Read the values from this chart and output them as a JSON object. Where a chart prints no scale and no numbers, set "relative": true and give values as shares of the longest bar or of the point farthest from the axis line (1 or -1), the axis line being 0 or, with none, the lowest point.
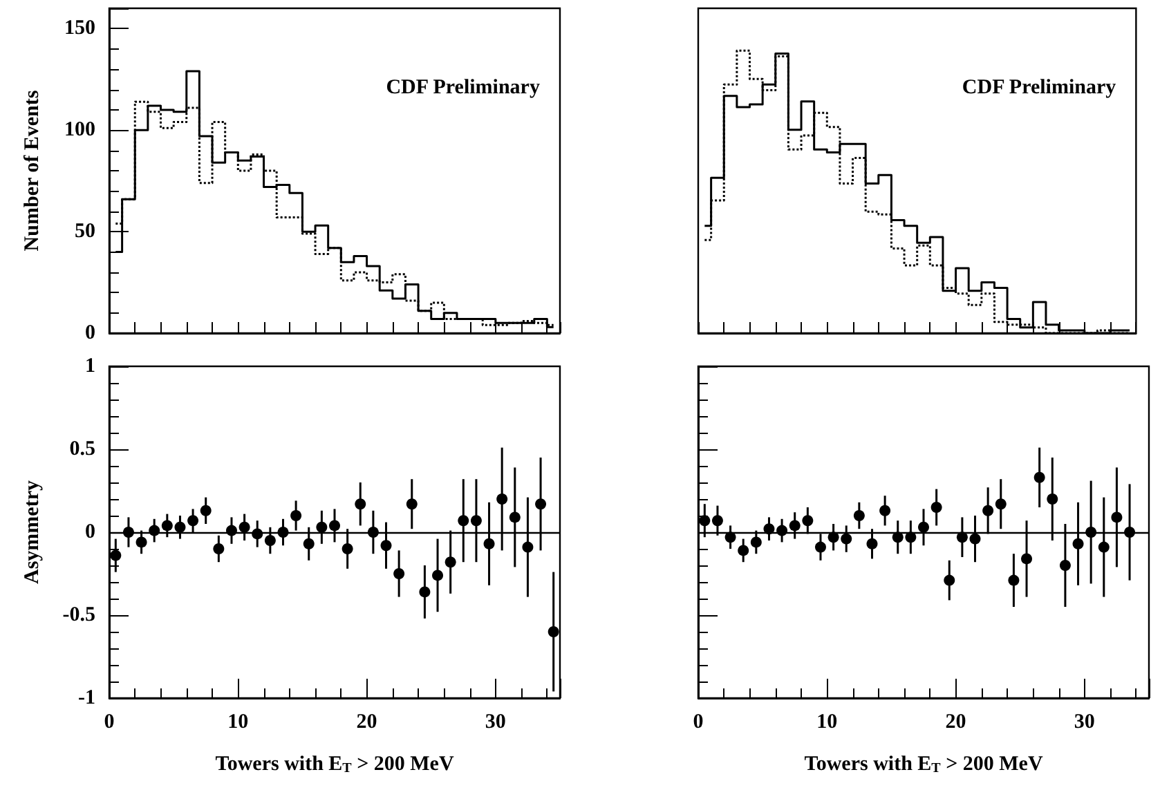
{
  "chart_data": [
    {
      "type": "step",
      "ylabel": "Number of Events",
      "annotations": [
        "CDF Preliminary"
      ],
      "categories": [
        null,
        null,
        null,
        null,
        null,
        null,
        null,
        null,
        null,
        null,
        null,
        null,
        null,
        null,
        null,
        null,
        null,
        null,
        null,
        null,
        null,
        null,
        null,
        null,
        null,
        null,
        null,
        null,
        null,
        null,
        null,
        null,
        null,
        null,
        null
      ],
      "series": [
        {
          "color": "#000000",
          "line_style": "solid",
          "values": [
            40,
            66,
            100,
            112,
            110,
            109,
            129,
            97,
            84,
            89,
            85,
            87,
            72,
            73,
            69,
            50,
            53,
            42,
            35,
            38,
            33,
            21,
            17,
            24,
            11,
            7,
            10,
            7,
            7,
            7,
            5,
            5,
            5,
            7,
            3
          ]
        },
        {
          "color": "#000000",
          "line_style": "dotted",
          "values": [
            54,
            66,
            114,
            109,
            101,
            104,
            111,
            74,
            104,
            89,
            80,
            88,
            80,
            57,
            57,
            49,
            39,
            42,
            26,
            30,
            26,
            25,
            29,
            16,
            11,
            15,
            7,
            7,
            7,
            4,
            4,
            5,
            6,
            5,
            4
          ]
        }
      ],
      "ylim": [
        0,
        160
      ],
      "yticks": [
        0,
        50,
        100,
        150
      ],
      "tick_labels": "y",
      "grid": false
    },
    {
      "type": "step",
      "relative": true,
      "annotations": [
        "CDF Preliminary"
      ],
      "categories": [
        null,
        null,
        null,
        null,
        null,
        null,
        null,
        null,
        null,
        null,
        null,
        null,
        null,
        null,
        null,
        null,
        null,
        null,
        null,
        null,
        null,
        null,
        null,
        null,
        null,
        null,
        null,
        null,
        null,
        null,
        null,
        null,
        null,
        null
      ],
      "series": [
        {
          "color": "#000000",
          "line_style": "solid",
          "values": [
            0.38,
            0.55,
            0.84,
            0.8,
            0.81,
            0.88,
            0.99,
            0.72,
            0.82,
            0.65,
            0.64,
            0.67,
            0.67,
            0.53,
            0.56,
            0.4,
            0.38,
            0.32,
            0.34,
            0.15,
            0.23,
            0.15,
            0.18,
            0.16,
            0.05,
            0.02,
            0.11,
            0.03,
            0.01,
            0.01,
            0,
            0,
            0.01,
            0.01
          ]
        },
        {
          "color": "#000000",
          "line_style": "dotted",
          "values": [
            0.33,
            0.47,
            0.88,
            1,
            0.9,
            0.86,
            0.98,
            0.65,
            0.7,
            0.78,
            0.73,
            0.53,
            0.62,
            0.43,
            0.42,
            0.3,
            0.24,
            0.31,
            0.24,
            0.16,
            0.14,
            0.1,
            0.14,
            0.04,
            0.03,
            0.03,
            0.02,
            0,
            0,
            0,
            0,
            0.01,
            0,
            0
          ]
        }
      ],
      "tick_labels": false,
      "grid": false
    },
    {
      "type": "scatter",
      "xlabel": "Towers with E$_{T}$ > 200 MeV",
      "ylabel": "Asymmetry",
      "marker": "circle",
      "color": "#000000",
      "x": [
        0.5,
        1.5,
        2.5,
        3.5,
        4.5,
        5.5,
        6.5,
        7.5,
        8.5,
        9.5,
        10.5,
        11.5,
        12.5,
        13.5,
        14.5,
        15.5,
        16.5,
        17.5,
        18.5,
        19.5,
        20.5,
        21.5,
        22.5,
        23.5,
        24.5,
        25.5,
        26.5,
        27.5,
        28.5,
        29.5,
        30.5,
        31.5,
        32.5,
        33.5,
        34.5
      ],
      "values": [
        -0.14,
        0,
        -0.06,
        0.01,
        0.04,
        0.03,
        0.07,
        0.13,
        -0.1,
        0.01,
        0.03,
        -0.01,
        -0.05,
        0,
        0.1,
        -0.07,
        0.03,
        0.04,
        -0.1,
        0.17,
        0,
        -0.08,
        -0.25,
        0.17,
        -0.36,
        -0.26,
        -0.18,
        0.07,
        0.07,
        -0.07,
        0.2,
        0.09,
        -0.09,
        0.17,
        -0.6
      ],
      "errors": [
        0.1,
        0.09,
        0.07,
        0.07,
        0.07,
        0.07,
        0.07,
        0.08,
        0.08,
        0.08,
        0.08,
        0.08,
        0.08,
        0.08,
        0.09,
        0.1,
        0.1,
        0.1,
        0.12,
        0.13,
        0.13,
        0.14,
        0.14,
        0.15,
        0.16,
        0.22,
        0.19,
        0.25,
        0.25,
        0.25,
        0.31,
        0.3,
        0.3,
        0.28,
        0.36
      ],
      "xlim": [
        0,
        35
      ],
      "xticks": [
        0,
        10,
        20,
        30
      ],
      "ylim": [
        -1,
        1
      ],
      "yticks": [
        -1,
        -0.5,
        0,
        0.5,
        1
      ],
      "ref_lines": [
        {
          "axis": "y",
          "value": 0,
          "color": "#000000"
        }
      ],
      "grid": false
    },
    {
      "type": "scatter",
      "xlabel": "Towers with E$_{T}$ > 200 MeV",
      "marker": "circle",
      "color": "#000000",
      "x": [
        0.5,
        1.5,
        2.5,
        3.5,
        4.5,
        5.5,
        6.5,
        7.5,
        8.5,
        9.5,
        10.5,
        11.5,
        12.5,
        13.5,
        14.5,
        15.5,
        16.5,
        17.5,
        18.5,
        19.5,
        20.5,
        21.5,
        22.5,
        23.5,
        24.5,
        25.5,
        26.5,
        27.5,
        28.5,
        29.5,
        30.5,
        31.5,
        32.5,
        33.5
      ],
      "values": [
        0.07,
        0.07,
        -0.03,
        -0.11,
        -0.06,
        0.02,
        0.01,
        0.04,
        0.07,
        -0.09,
        -0.03,
        -0.04,
        0.1,
        -0.07,
        0.13,
        -0.03,
        -0.03,
        0.03,
        0.15,
        -0.29,
        -0.03,
        -0.04,
        0.13,
        0.17,
        -0.29,
        -0.16,
        0.33,
        0.2,
        -0.2,
        -0.07,
        0,
        -0.09,
        0.09,
        0
      ],
      "errors": [
        0.1,
        0.09,
        0.07,
        0.07,
        0.07,
        0.07,
        0.07,
        0.08,
        0.08,
        0.08,
        0.08,
        0.08,
        0.08,
        0.09,
        0.09,
        0.1,
        0.1,
        0.11,
        0.11,
        0.12,
        0.12,
        0.14,
        0.14,
        0.15,
        0.16,
        0.23,
        0.18,
        0.25,
        0.25,
        0.25,
        0.31,
        0.3,
        0.3,
        0.29
      ],
      "xlim": [
        0,
        35
      ],
      "xticks": [
        0,
        10,
        20,
        30
      ],
      "ylim": [
        -1,
        1
      ],
      "yticks": [
        -1,
        -0.5,
        0,
        0.5,
        1
      ],
      "tick_labels": "x",
      "ref_lines": [
        {
          "axis": "y",
          "value": 0,
          "color": "#000000"
        }
      ],
      "grid": false
    }
  ]
}
